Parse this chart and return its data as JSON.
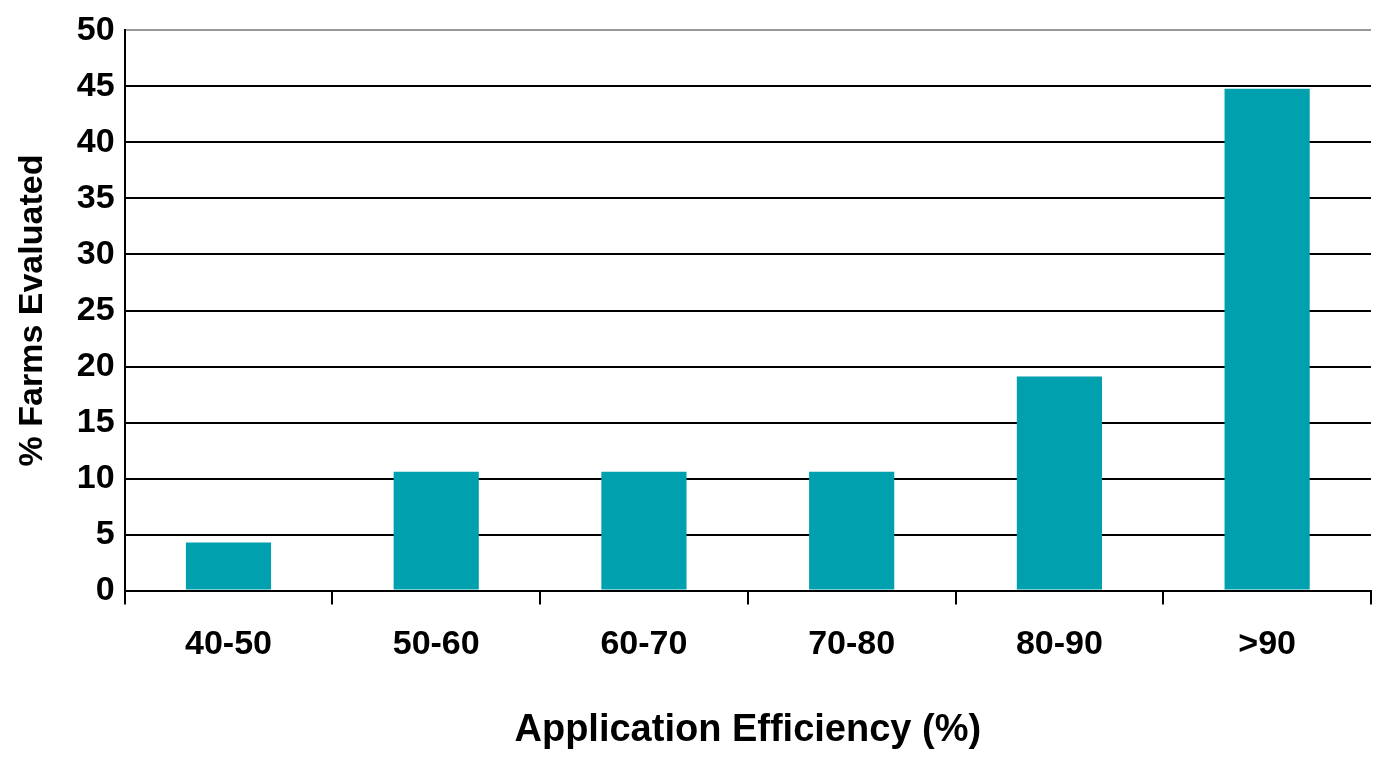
{
  "chart_data": {
    "type": "bar",
    "xlabel": "Application Efficiency (%)",
    "ylabel": "% Farms Evaluated",
    "categories": [
      "40-50",
      "50-60",
      "60-70",
      "70-80",
      "80-90",
      ">90"
    ],
    "values": [
      4.3,
      10.6,
      10.6,
      10.6,
      19.1,
      44.8
    ],
    "color": "#00a0af",
    "ylim": [
      0,
      50
    ],
    "yticks": [
      0,
      5,
      10,
      15,
      20,
      25,
      30,
      35,
      40,
      45,
      50
    ],
    "grid": "y",
    "legend": false
  }
}
